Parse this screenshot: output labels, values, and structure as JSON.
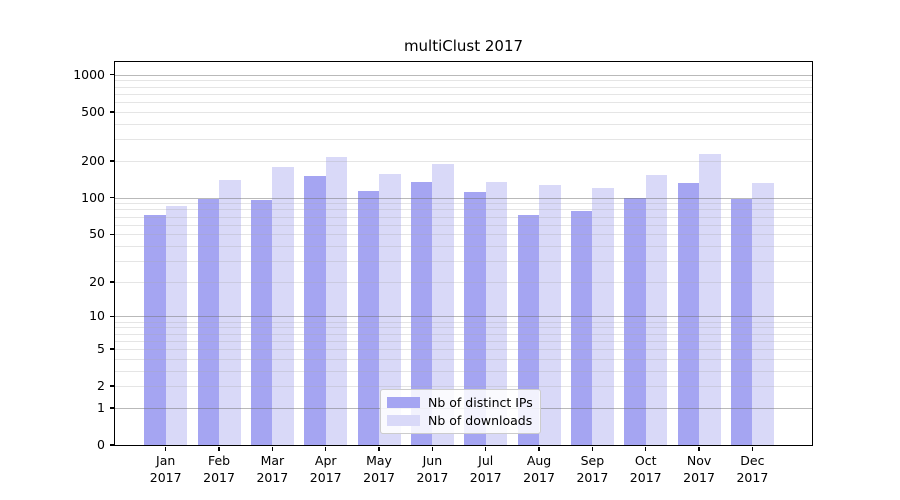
{
  "chart_data": {
    "type": "bar",
    "title": "multiClust 2017",
    "categories": [
      "Jan",
      "Feb",
      "Mar",
      "Apr",
      "May",
      "Jun",
      "Jul",
      "Aug",
      "Sep",
      "Oct",
      "Nov",
      "Dec"
    ],
    "year_label": "2017",
    "series": [
      {
        "name": "Nb of distinct IPs",
        "color": "#a5a5f2",
        "values": [
          72,
          97,
          95,
          150,
          114,
          135,
          112,
          72,
          78,
          100,
          132,
          97
        ]
      },
      {
        "name": "Nb of downloads",
        "color": "#d9d9f8",
        "values": [
          86,
          140,
          178,
          214,
          157,
          189,
          135,
          127,
          119,
          153,
          228,
          133
        ]
      }
    ],
    "ylabel": "",
    "xlabel": "",
    "yticks": [
      0,
      1,
      2,
      5,
      10,
      20,
      50,
      100,
      200,
      500,
      1000
    ],
    "y_scale": "log10(value+1)",
    "ylim": [
      0,
      1250
    ],
    "grid": {
      "on": true,
      "major": [
        1,
        10,
        100,
        1000
      ],
      "minor": [
        2,
        3,
        4,
        5,
        6,
        7,
        8,
        9,
        20,
        30,
        40,
        50,
        60,
        70,
        80,
        90,
        200,
        300,
        400,
        500,
        600,
        700,
        800,
        900
      ]
    },
    "legend": {
      "position": "lower-center"
    }
  }
}
